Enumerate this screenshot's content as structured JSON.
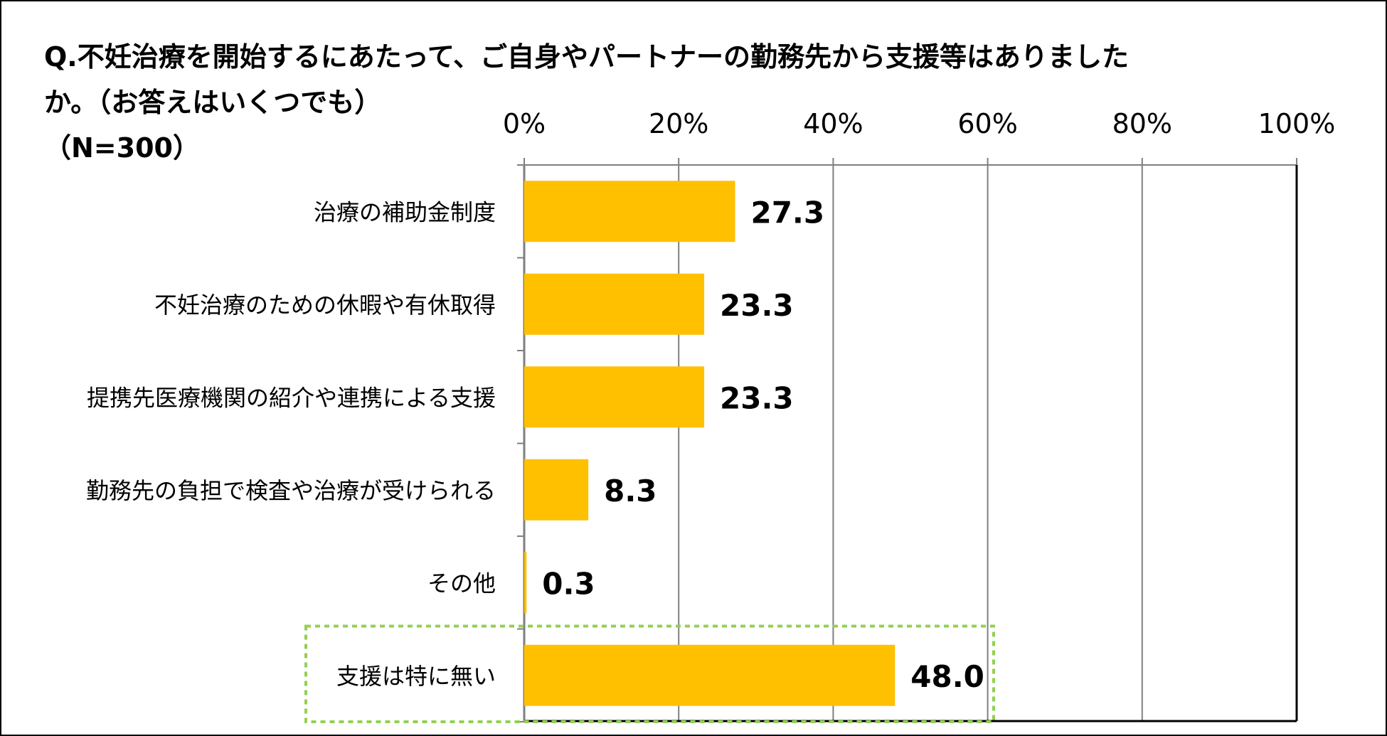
{
  "title_lines": [
    "Q.不妊治療を開始するにあたって、ご自身やパートナーの勤務先から支援等はありました",
    "か。（お答えはいくつでも）",
    "（N=300）"
  ],
  "chart_data": {
    "type": "bar",
    "orientation": "horizontal",
    "categories": [
      "治療の補助金制度",
      "不妊治療のための休暇や有休取得",
      "提携先医療機関の紹介や連携による支援",
      "勤務先の負担で検査や治療が受けられる",
      "その他",
      "支援は特に無い"
    ],
    "values": [
      27.3,
      23.3,
      23.3,
      8.3,
      0.3,
      48.0
    ],
    "value_labels": [
      "27.3",
      "23.3",
      "23.3",
      "8.3",
      "0.3",
      "48.0"
    ],
    "xlim": [
      0,
      100
    ],
    "xticks": [
      "0%",
      "20%",
      "40%",
      "60%",
      "80%",
      "100%"
    ],
    "xtick_values": [
      0,
      20,
      40,
      60,
      80,
      100
    ],
    "axis_position": "top",
    "grid": true,
    "highlighted_category_index": 5,
    "colors": {
      "bar": "#FFC000",
      "grid": "#808080",
      "highlight_border": "#92D050",
      "text": "#000000"
    }
  }
}
